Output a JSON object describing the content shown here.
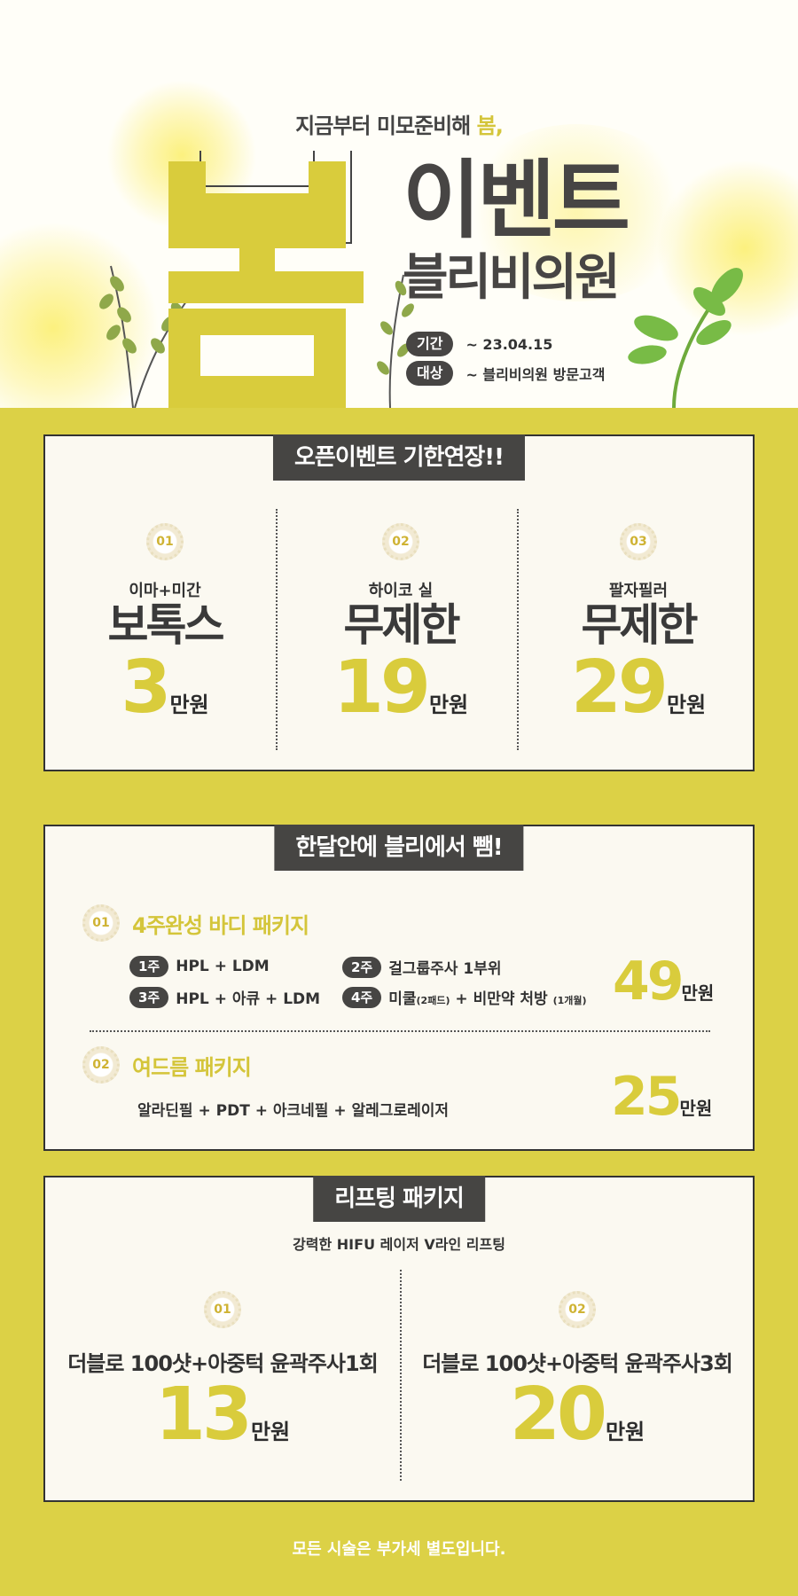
{
  "hero": {
    "subtitle_prefix": "지금부터 미모준비해 ",
    "subtitle_highlight": "봄,",
    "big_char": "봄",
    "event_title": "이벤트",
    "clinic_name": "블리비의원",
    "period_label": "기간",
    "period_value": "~ 23.04.15",
    "target_label": "대상",
    "target_value": "~ 블리비의원 방문고객"
  },
  "section1": {
    "title": "오픈이벤트 기한연장!!",
    "items": [
      {
        "num": "01",
        "sub": "이마+미간",
        "name": "보톡스",
        "price": "3",
        "unit": "만원"
      },
      {
        "num": "02",
        "sub": "하이코 실",
        "name": "무제한",
        "price": "19",
        "unit": "만원"
      },
      {
        "num": "03",
        "sub": "팔자필러",
        "name": "무제한",
        "price": "29",
        "unit": "만원"
      }
    ]
  },
  "section2": {
    "title": "한달안에 블리에서 뺌!",
    "pkg1": {
      "num": "01",
      "title": "4주완성 바디 패키지",
      "steps": [
        {
          "tag": "1주",
          "text": "HPL + LDM"
        },
        {
          "tag": "2주",
          "text": "걸그룹주사 1부위"
        },
        {
          "tag": "3주",
          "text": "HPL + 아큐 + LDM"
        },
        {
          "tag": "4주",
          "text_a": "미쿨",
          "text_b": "(2패드)",
          "text_c": " + 비만약 처방 ",
          "text_d": "(1개월)"
        }
      ],
      "price": "49",
      "unit": "만원"
    },
    "pkg2": {
      "num": "02",
      "title": "여드름 패키지",
      "desc": "알라딘필 + PDT + 아크네필 + 알레그로레이저",
      "price": "25",
      "unit": "만원"
    }
  },
  "section3": {
    "title": "리프팅 패키지",
    "subtitle": "강력한 HIFU  레이저 V라인 리프팅",
    "items": [
      {
        "num": "01",
        "name": "더블로 100샷+아중턱 윤곽주사1회",
        "price": "13",
        "unit": "만원"
      },
      {
        "num": "02",
        "name": "더블로 100샷+아중턱 윤곽주사3회",
        "price": "20",
        "unit": "만원"
      }
    ]
  },
  "footer": {
    "note": "모든 시술은 부가세 별도입니다."
  },
  "colors": {
    "accent": "#dcd146",
    "dark": "#464543",
    "card": "#fbf9f1"
  }
}
